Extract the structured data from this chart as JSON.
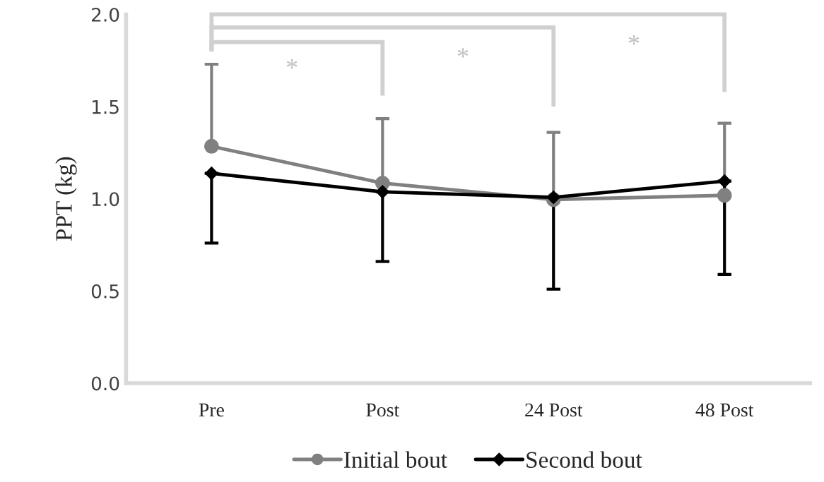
{
  "chart_data": {
    "type": "line",
    "ylabel": "PPT (kg)",
    "categories": [
      "Pre",
      "Post",
      "24 Post",
      "48 Post"
    ],
    "series": [
      {
        "name": "Initial bout",
        "color": "#808080",
        "marker": "circle",
        "values": [
          1.285,
          1.085,
          0.996,
          1.019
        ],
        "errors": [
          [
            1.285,
            1.73
          ],
          [
            1.085,
            1.435
          ],
          [
            0.996,
            1.36
          ],
          [
            1.019,
            1.41
          ]
        ]
      },
      {
        "name": "Second bout",
        "color": "#000000",
        "marker": "diamond",
        "values": [
          1.138,
          1.038,
          1.008,
          1.096
        ],
        "errors": [
          [
            0.76,
            1.138
          ],
          [
            0.66,
            1.038
          ],
          [
            0.51,
            1.008
          ],
          [
            0.59,
            1.096
          ]
        ]
      }
    ],
    "ylim": [
      0,
      2
    ],
    "yticks": [
      {
        "value": 0,
        "label": "0.0"
      },
      {
        "value": 0.5,
        "label": "0.5"
      },
      {
        "value": 1,
        "label": "1.0"
      },
      {
        "value": 1.5,
        "label": "1.5"
      },
      {
        "value": 2,
        "label": "2.0"
      }
    ],
    "annotations": [
      "*",
      "*",
      "*"
    ],
    "grid": false,
    "legend": "bottom"
  }
}
